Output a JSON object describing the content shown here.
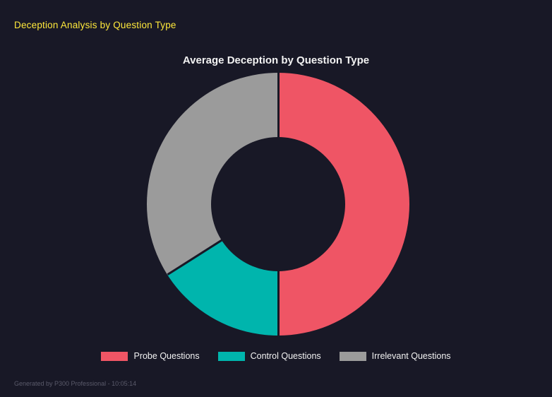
{
  "page": {
    "title": "Deception Analysis by Question Type",
    "footer": "Generated by P300 Professional - 10:05:14",
    "background": "#181826",
    "title_color": "#ffe93b"
  },
  "chart_data": {
    "type": "pie",
    "donut": true,
    "title": "Average Deception by Question Type",
    "categories": [
      "Probe Questions",
      "Control Questions",
      "Irrelevant Questions"
    ],
    "values": [
      50,
      16,
      34
    ],
    "unit": "percent-share",
    "colors": [
      "#ef5565",
      "#00b5ad",
      "#9b9b9b"
    ],
    "legend_position": "bottom",
    "start_angle_deg": 0,
    "hole_ratio": 0.51
  }
}
